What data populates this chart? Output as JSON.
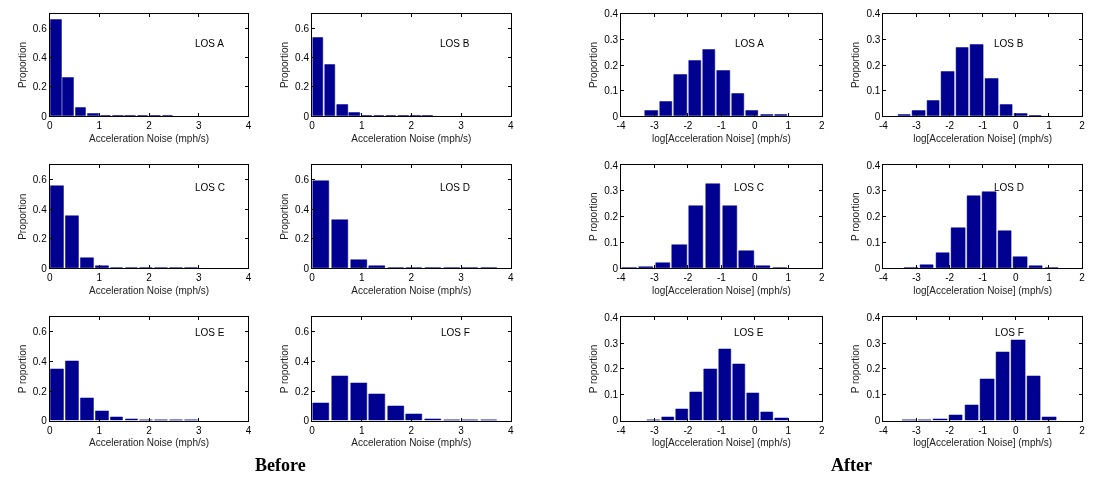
{
  "chart_data": [
    {
      "type": "histogram",
      "title": "LOS A",
      "xlabel": "Acceleration Noise (mph/s)",
      "ylabel": "Proportion",
      "color": "#000090",
      "bins": [
        0,
        0.25,
        0.5,
        0.75,
        1.0,
        1.25,
        1.5,
        1.75,
        2.0,
        2.25,
        2.5
      ],
      "values": [
        0.66,
        0.265,
        0.058,
        0.015,
        0.005,
        0.002,
        0.002,
        0.002,
        0.003,
        0.003
      ],
      "xlim": [
        0,
        4
      ],
      "xticks": [
        0,
        1,
        2,
        3,
        4
      ],
      "ylim": [
        0,
        0.7
      ],
      "yticks": [
        0,
        0.2,
        0.4,
        0.6
      ]
    },
    {
      "type": "histogram",
      "title": "LOS B",
      "xlabel": "Acceleration Noise (mph/s)",
      "ylabel": "Proportion",
      "color": "#000090",
      "bins": [
        0,
        0.245,
        0.49,
        0.735,
        0.98,
        1.225,
        1.47,
        1.715,
        1.96,
        2.205,
        2.45
      ],
      "values": [
        0.535,
        0.35,
        0.08,
        0.022,
        0.004,
        0.003,
        0.003,
        0.003,
        0.003,
        0.003
      ],
      "xlim": [
        0,
        4
      ],
      "xticks": [
        0,
        1,
        2,
        3,
        4
      ],
      "ylim": [
        0,
        0.7
      ],
      "yticks": [
        0,
        0.2,
        0.4,
        0.6
      ]
    },
    {
      "type": "histogram",
      "title": "LOS A",
      "xlabel": "log[Acceleration Noise] (mph/s)",
      "ylabel": "Proportion",
      "color": "#000090",
      "bins": [
        -3.3,
        -2.87,
        -2.44,
        -2.01,
        -1.58,
        -1.15,
        -0.72,
        -0.29,
        0.14,
        0.57,
        1.0
      ],
      "values": [
        0.02,
        0.055,
        0.162,
        0.218,
        0.258,
        0.178,
        0.087,
        0.02,
        0.005,
        0.005
      ],
      "xlim": [
        -4,
        2
      ],
      "xticks": [
        -4,
        -3,
        -2,
        -1,
        0,
        1,
        2
      ],
      "ylim": [
        0,
        0.4
      ],
      "yticks": [
        0,
        0.1,
        0.2,
        0.3,
        0.4
      ]
    },
    {
      "type": "histogram",
      "title": "LOS B",
      "xlabel": "log[Acceleration Noise] (mph/s)",
      "ylabel": "Proportion",
      "color": "#000090",
      "bins": [
        -3.59,
        -3.15,
        -2.71,
        -2.27,
        -1.83,
        -1.39,
        -0.95,
        -0.51,
        -0.07,
        0.37,
        0.81
      ],
      "values": [
        0.005,
        0.02,
        0.06,
        0.173,
        0.267,
        0.278,
        0.148,
        0.046,
        0.009,
        0.003
      ],
      "xlim": [
        -4,
        2
      ],
      "xticks": [
        -4,
        -3,
        -2,
        -1,
        0,
        1,
        2
      ],
      "ylim": [
        0,
        0.4
      ],
      "yticks": [
        0,
        0.1,
        0.2,
        0.3,
        0.4
      ]
    },
    {
      "type": "histogram",
      "title": "LOS C",
      "xlabel": "Acceleration Noise (mph/s)",
      "ylabel": "Proportion",
      "color": "#000090",
      "bins": [
        0,
        0.3,
        0.6,
        0.9,
        1.2,
        1.5,
        1.8,
        2.1,
        2.4,
        2.7,
        3.0
      ],
      "values": [
        0.555,
        0.355,
        0.07,
        0.018,
        0.004,
        0.004,
        0.004,
        0.004,
        0.004,
        0.004
      ],
      "xlim": [
        0,
        4
      ],
      "xticks": [
        0,
        1,
        2,
        3,
        4
      ],
      "ylim": [
        0,
        0.7
      ],
      "yticks": [
        0,
        0.2,
        0.4,
        0.6
      ]
    },
    {
      "type": "histogram",
      "title": "LOS D",
      "xlabel": "Acceleration Noise (mph/s)",
      "ylabel": "Proportion",
      "color": "#000090",
      "bins": [
        0,
        0.375,
        0.75,
        1.125,
        1.5,
        1.875,
        2.25,
        2.625,
        3.0,
        3.375,
        3.75
      ],
      "values": [
        0.59,
        0.325,
        0.06,
        0.018,
        0.004,
        0.004,
        0.003,
        0.003,
        0.001,
        0.003
      ],
      "xlim": [
        0,
        4
      ],
      "xticks": [
        0,
        1,
        2,
        3,
        4
      ],
      "ylim": [
        0,
        0.7
      ],
      "yticks": [
        0,
        0.2,
        0.4,
        0.6
      ]
    },
    {
      "type": "histogram",
      "title": "LOS C",
      "xlabel": "log[Acceleration Noise] (mph/s)",
      "ylabel": "P roportion",
      "color": "#000090",
      "bins": [
        -4.0,
        -3.5,
        -3.0,
        -2.5,
        -2.0,
        -1.5,
        -1.0,
        -0.5,
        0.0,
        0.5,
        1.0
      ],
      "values": [
        0.002,
        0.005,
        0.022,
        0.09,
        0.243,
        0.327,
        0.24,
        0.068,
        0.008,
        0.002
      ],
      "xlim": [
        -4,
        2
      ],
      "xticks": [
        -4,
        -3,
        -2,
        -1,
        0,
        1,
        2
      ],
      "ylim": [
        0,
        0.4
      ],
      "yticks": [
        0,
        0.1,
        0.2,
        0.3,
        0.4
      ]
    },
    {
      "type": "histogram",
      "title": "LOS D",
      "xlabel": "log[Acceleration Noise] (mph/s)",
      "ylabel": "P roportion",
      "color": "#000090",
      "bins": [
        -3.385,
        -2.915,
        -2.445,
        -1.975,
        -1.505,
        -1.035,
        -0.565,
        -0.095,
        0.375,
        0.845,
        1.315
      ],
      "values": [
        0.002,
        0.015,
        0.06,
        0.155,
        0.28,
        0.295,
        0.143,
        0.043,
        0.009,
        0.002
      ],
      "xlim": [
        -4,
        2
      ],
      "xticks": [
        -4,
        -3,
        -2,
        -1,
        0,
        1,
        2
      ],
      "ylim": [
        0,
        0.4
      ],
      "yticks": [
        0,
        0.1,
        0.2,
        0.3,
        0.4
      ]
    },
    {
      "type": "histogram",
      "title": "LOS E",
      "xlabel": "Acceleration Noise (mph/s)",
      "ylabel": "P roportion",
      "color": "#000090",
      "bins": [
        0,
        0.3,
        0.6,
        0.9,
        1.2,
        1.5,
        1.8,
        2.1,
        2.4,
        2.7,
        3.0
      ],
      "values": [
        0.345,
        0.4,
        0.155,
        0.065,
        0.025,
        0.012,
        0.005,
        0.004,
        0.003,
        0.003
      ],
      "xlim": [
        0,
        4
      ],
      "xticks": [
        0,
        1,
        2,
        3,
        4
      ],
      "ylim": [
        0,
        0.7
      ],
      "yticks": [
        0,
        0.2,
        0.4,
        0.6
      ],
      "annotations": [
        "Before"
      ]
    },
    {
      "type": "histogram",
      "title": "LOS F",
      "xlabel": "Acceleration Noise (mph/s)",
      "ylabel": "P roportion",
      "color": "#000090",
      "bins": [
        0,
        0.375,
        0.75,
        1.125,
        1.5,
        1.875,
        2.25,
        2.625,
        3.0,
        3.375,
        3.75
      ],
      "values": [
        0.12,
        0.3,
        0.255,
        0.18,
        0.1,
        0.045,
        0.012,
        0.005,
        0.004,
        0.004
      ],
      "xlim": [
        0,
        4
      ],
      "xticks": [
        0,
        1,
        2,
        3,
        4
      ],
      "ylim": [
        0,
        0.7
      ],
      "yticks": [
        0,
        0.2,
        0.4,
        0.6
      ]
    },
    {
      "type": "histogram",
      "title": "LOS E",
      "xlabel": "log[Acceleration Noise] (mph/s)",
      "ylabel": "P roportion",
      "color": "#000090",
      "bins": [
        -3.24,
        -2.815,
        -2.39,
        -1.965,
        -1.54,
        -1.115,
        -0.69,
        -0.265,
        0.16,
        0.585,
        1.01
      ],
      "values": [
        0.003,
        0.015,
        0.045,
        0.108,
        0.2,
        0.278,
        0.218,
        0.105,
        0.033,
        0.01
      ],
      "xlim": [
        -4,
        2
      ],
      "xticks": [
        -4,
        -3,
        -2,
        -1,
        0,
        1,
        2
      ],
      "ylim": [
        0,
        0.4
      ],
      "yticks": [
        0,
        0.1,
        0.2,
        0.3,
        0.4
      ],
      "annotations": [
        "After"
      ]
    },
    {
      "type": "histogram",
      "title": "LOS F",
      "xlabel": "log[Acceleration Noise] (mph/s)",
      "ylabel": "P roportion",
      "color": "#000090",
      "bins": [
        -3.45,
        -2.98,
        -2.51,
        -2.04,
        -1.57,
        -1.1,
        -0.63,
        -0.16,
        0.31,
        0.78,
        1.25
      ],
      "values": [
        0.003,
        0.003,
        0.005,
        0.02,
        0.06,
        0.162,
        0.265,
        0.31,
        0.173,
        0.012
      ],
      "xlim": [
        -4,
        2
      ],
      "xticks": [
        -4,
        -3,
        -2,
        -1,
        0,
        1,
        2
      ],
      "ylim": [
        0,
        0.4
      ],
      "yticks": [
        0,
        0.1,
        0.2,
        0.3,
        0.4
      ]
    }
  ]
}
